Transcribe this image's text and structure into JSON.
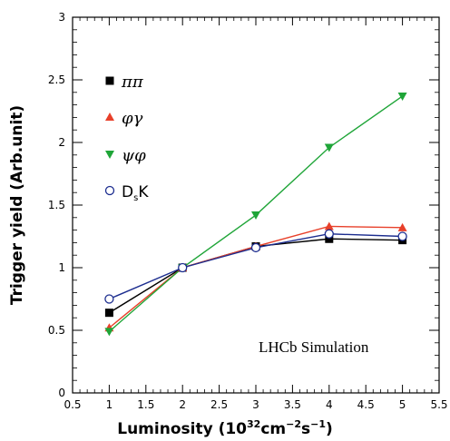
{
  "chart_data": {
    "type": "line",
    "xlabel": "Luminosity (10",
    "xlabel_sup1": "32",
    "xlabel_mid": "cm",
    "xlabel_sup2": "−2",
    "xlabel_mid2": "s",
    "xlabel_sup3": "−1",
    "xlabel_end": ")",
    "ylabel": "Trigger yield (Arb.unit)",
    "xlim": [
      0.5,
      5.5
    ],
    "ylim": [
      0,
      3
    ],
    "xticks": [
      "0.5",
      "1",
      "1.5",
      "2",
      "2.5",
      "3",
      "3.5",
      "4",
      "4.5",
      "5",
      "5.5"
    ],
    "yticks": [
      "0",
      "0.5",
      "1",
      "1.5",
      "2",
      "2.5",
      "3"
    ],
    "annotation": "LHCb Simulation",
    "legend_placement": "top-left",
    "series": [
      {
        "name": "ππ",
        "marker": "square",
        "color": "#000000",
        "x": [
          1,
          2,
          3,
          4,
          5
        ],
        "y": [
          0.64,
          1.0,
          1.17,
          1.23,
          1.22
        ]
      },
      {
        "name": "φγ",
        "marker": "triangle-up",
        "color": "#e8402a",
        "x": [
          1,
          2,
          3,
          4,
          5
        ],
        "y": [
          0.52,
          1.0,
          1.17,
          1.33,
          1.32
        ]
      },
      {
        "name": "ψφ",
        "marker": "triangle-down",
        "color": "#1fa538",
        "x": [
          1,
          2,
          3,
          4,
          5
        ],
        "y": [
          0.49,
          1.0,
          1.42,
          1.96,
          2.37
        ]
      },
      {
        "name": "DsK",
        "name_main": "D",
        "name_sub": "s",
        "name_end": "K",
        "marker": "circle-open",
        "color": "#1c2d8f",
        "x": [
          1,
          2,
          3,
          4,
          5
        ],
        "y": [
          0.75,
          1.0,
          1.16,
          1.27,
          1.25
        ]
      }
    ]
  }
}
